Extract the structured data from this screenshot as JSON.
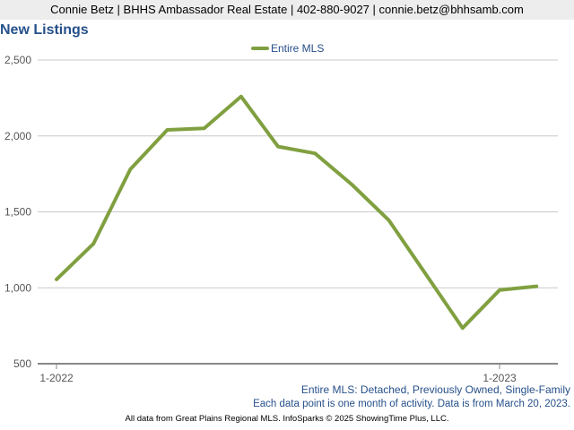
{
  "header": {
    "contact_line": "Connie Betz | BHHS Ambassador Real Estate | 402-880-9027 | connie.betz@bhhsamb.com"
  },
  "chart_data": {
    "type": "line",
    "title": "New Listings",
    "xlabel": "",
    "ylabel": "",
    "x": [
      "1-2022",
      "2-2022",
      "3-2022",
      "4-2022",
      "5-2022",
      "6-2022",
      "7-2022",
      "8-2022",
      "9-2022",
      "10-2022",
      "11-2022",
      "12-2022",
      "1-2023",
      "2-2023"
    ],
    "x_tick_labels": [
      "1-2022",
      "1-2023"
    ],
    "ylim": [
      500,
      2500
    ],
    "y_ticks": [
      500,
      1000,
      1500,
      2000,
      2500
    ],
    "y_tick_labels": [
      "500",
      "1,000",
      "1,500",
      "2,000",
      "2,500"
    ],
    "grid": true,
    "legend_position": "top-center",
    "series": [
      {
        "name": "Entire MLS",
        "color": "#80a040",
        "values": [
          1055,
          1290,
          1780,
          2040,
          2050,
          2260,
          1930,
          1885,
          1680,
          1445,
          1090,
          735,
          985,
          1010
        ]
      }
    ]
  },
  "footer": {
    "series_description": "Entire MLS: Detached, Previously Owned, Single-Family",
    "data_note": "Each data point is one month of activity. Data is from March 20, 2023.",
    "credit": "All data from Great Plains Regional MLS. InfoSparks © 2025 ShowingTime Plus, LLC."
  },
  "colors": {
    "title": "#26508a",
    "line": "#80a040",
    "grid": "#c8c8c8",
    "axis": "#888888"
  }
}
